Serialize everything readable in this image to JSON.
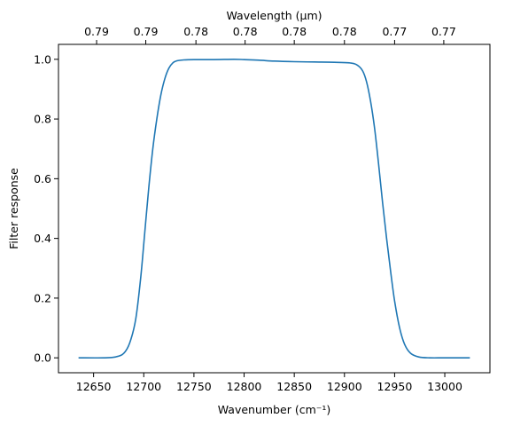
{
  "chart_data": {
    "type": "line",
    "title": "",
    "xlabel": "Wavenumber (cm⁻¹)",
    "ylabel": "Filter response",
    "top_xlabel": "Wavelength (μm)",
    "xlim": [
      12615,
      13045
    ],
    "ylim": [
      -0.05,
      1.05
    ],
    "x_ticks": [
      12650,
      12700,
      12750,
      12800,
      12850,
      12900,
      12950,
      13000
    ],
    "y_ticks": [
      0.0,
      0.2,
      0.4,
      0.6,
      0.8,
      1.0
    ],
    "y_tick_labels": [
      "0.0",
      "0.2",
      "0.4",
      "0.6",
      "0.8",
      "1.0"
    ],
    "top_ticks": [
      12653,
      12702,
      12752,
      12801,
      12850,
      12900,
      12950,
      12999
    ],
    "top_tick_labels": [
      "0.79",
      "0.79",
      "0.78",
      "0.78",
      "0.78",
      "0.78",
      "0.77",
      "0.77"
    ],
    "grid": false,
    "line_color": "#1f77b4",
    "series": [
      {
        "x": [
          12635,
          12660,
          12672,
          12680,
          12686,
          12692,
          12697,
          12701,
          12705,
          12709,
          12713,
          12717,
          12721,
          12725,
          12729,
          12733,
          12740,
          12750,
          12770,
          12790,
          12800,
          12815,
          12830,
          12850,
          12870,
          12890,
          12905,
          12912,
          12918,
          12922,
          12926,
          12930,
          12934,
          12938,
          12942,
          12946,
          12950,
          12955,
          12960,
          12966,
          12974,
          12985,
          13000,
          13025
        ],
        "y": [
          0.0,
          0.0,
          0.003,
          0.015,
          0.05,
          0.13,
          0.27,
          0.42,
          0.57,
          0.7,
          0.8,
          0.88,
          0.935,
          0.97,
          0.988,
          0.995,
          0.998,
          0.999,
          0.999,
          1.0,
          0.999,
          0.997,
          0.994,
          0.992,
          0.991,
          0.99,
          0.988,
          0.982,
          0.962,
          0.925,
          0.86,
          0.77,
          0.65,
          0.52,
          0.4,
          0.29,
          0.19,
          0.1,
          0.045,
          0.015,
          0.003,
          0.0,
          0.0,
          0.0
        ]
      }
    ]
  }
}
